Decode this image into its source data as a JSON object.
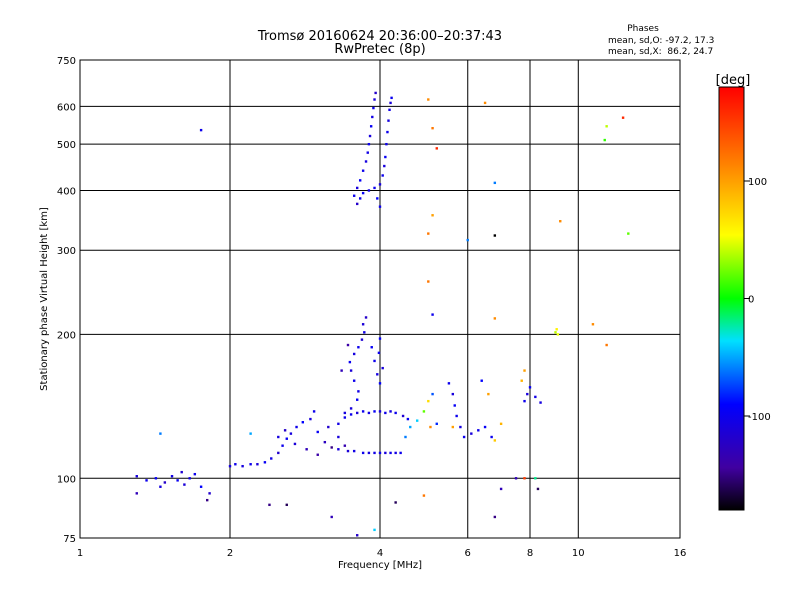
{
  "chart_data": {
    "type": "scatter",
    "title": "Tromsø 20160624 20:36:00–20:37:43",
    "subtitle": "RwPretec (8p)",
    "xlabel": "Frequency [MHz]",
    "ylabel": "Stationary phase Virtual Height [km]",
    "x_scale": "log",
    "y_scale": "log",
    "xlim": [
      1,
      16
    ],
    "ylim": [
      75,
      750
    ],
    "x_ticks": [
      1,
      2,
      4,
      6,
      8,
      10,
      16
    ],
    "x_tick_labels": [
      "1",
      "2",
      "4",
      "6",
      "8",
      "10",
      "16"
    ],
    "y_ticks": [
      75,
      100,
      200,
      300,
      400,
      500,
      600,
      750
    ],
    "y_tick_labels": [
      "75",
      "100",
      "200",
      "300",
      "400",
      "500",
      "600",
      "750"
    ],
    "x_grid": [
      2,
      4,
      6,
      8,
      10
    ],
    "y_grid": [
      100,
      200,
      300,
      400,
      500,
      600
    ],
    "grid": true,
    "stats": {
      "header": "Phases",
      "line_o": "mean, sd,O: -97.2, 17.3",
      "line_x": "mean, sd,X:  86.2, 24.7"
    },
    "colorbar": {
      "label": "[deg]",
      "range": [
        -180,
        180
      ],
      "ticks": [
        100,
        0,
        -100
      ],
      "tick_labels": [
        "100",
        "0",
        "-100"
      ]
    },
    "series": [
      {
        "name": "",
        "points": [
          [
            1.3,
            101,
            -110
          ],
          [
            1.36,
            99,
            -100
          ],
          [
            1.42,
            100,
            -95
          ],
          [
            1.48,
            98,
            -120
          ],
          [
            1.53,
            101,
            -105
          ],
          [
            1.57,
            99,
            -98
          ],
          [
            1.62,
            97,
            -112
          ],
          [
            1.66,
            100,
            -104
          ],
          [
            1.6,
            103,
            -115
          ],
          [
            1.7,
            102,
            -100
          ],
          [
            1.45,
            96,
            -108
          ],
          [
            1.3,
            93,
            -130
          ],
          [
            1.75,
            96,
            -90
          ],
          [
            1.82,
            93,
            -118
          ],
          [
            2.0,
            106,
            -110
          ],
          [
            2.05,
            107,
            -102
          ],
          [
            2.12,
            106,
            -108
          ],
          [
            2.2,
            107,
            -100
          ],
          [
            2.27,
            107,
            -112
          ],
          [
            2.35,
            108,
            -96
          ],
          [
            2.42,
            110,
            -105
          ],
          [
            2.5,
            113,
            -118
          ],
          [
            2.55,
            117,
            -100
          ],
          [
            2.6,
            121,
            -95
          ],
          [
            2.65,
            124,
            -108
          ],
          [
            2.72,
            128,
            -102
          ],
          [
            2.8,
            131,
            -90
          ],
          [
            2.9,
            133,
            -110
          ],
          [
            2.95,
            138,
            -100
          ],
          [
            2.5,
            122,
            -108
          ],
          [
            2.58,
            126,
            -120
          ],
          [
            2.7,
            118,
            -112
          ],
          [
            2.85,
            115,
            -130
          ],
          [
            3.0,
            112,
            -140
          ],
          [
            3.1,
            119,
            -125
          ],
          [
            3.2,
            116,
            -150
          ],
          [
            3.3,
            122,
            -110
          ],
          [
            3.4,
            117,
            -135
          ],
          [
            3.0,
            125,
            -95
          ],
          [
            3.15,
            128,
            -118
          ],
          [
            3.3,
            130,
            -105
          ],
          [
            3.4,
            134,
            -100
          ],
          [
            3.5,
            140,
            -110
          ],
          [
            3.6,
            146,
            -95
          ],
          [
            3.62,
            152,
            -105
          ],
          [
            3.55,
            160,
            -100
          ],
          [
            3.5,
            168,
            -112
          ],
          [
            3.48,
            175,
            -98
          ],
          [
            3.55,
            182,
            -108
          ],
          [
            3.62,
            188,
            -100
          ],
          [
            3.68,
            195,
            -115
          ],
          [
            3.72,
            202,
            -104
          ],
          [
            3.7,
            210,
            -112
          ],
          [
            3.75,
            217,
            -120
          ],
          [
            3.85,
            188,
            -95
          ],
          [
            3.9,
            176,
            -100
          ],
          [
            3.95,
            165,
            -108
          ],
          [
            4.0,
            158,
            -92
          ],
          [
            4.05,
            170,
            -110
          ],
          [
            3.98,
            183,
            -100
          ],
          [
            4.0,
            196,
            -96
          ],
          [
            3.45,
            190,
            -140
          ],
          [
            3.35,
            168,
            -130
          ],
          [
            3.4,
            137,
            -108
          ],
          [
            3.5,
            136,
            -100
          ],
          [
            3.6,
            137,
            -112
          ],
          [
            3.7,
            138,
            -100
          ],
          [
            3.8,
            137,
            -104
          ],
          [
            3.9,
            138,
            -96
          ],
          [
            4.0,
            138,
            -110
          ],
          [
            4.1,
            137,
            -102
          ],
          [
            4.2,
            138,
            -108
          ],
          [
            4.3,
            137,
            -100
          ],
          [
            4.45,
            135,
            -115
          ],
          [
            4.55,
            133,
            -95
          ],
          [
            3.3,
            115,
            -110
          ],
          [
            3.45,
            114,
            -112
          ],
          [
            3.55,
            114,
            -104
          ],
          [
            3.7,
            113,
            -100
          ],
          [
            3.8,
            113,
            -108
          ],
          [
            3.9,
            113,
            -104
          ],
          [
            4.0,
            113,
            -100
          ],
          [
            4.1,
            113,
            -110
          ],
          [
            4.2,
            113,
            -102
          ],
          [
            4.3,
            113,
            -106
          ],
          [
            4.4,
            113,
            -100
          ],
          [
            4.5,
            122,
            -60
          ],
          [
            4.6,
            128,
            -50
          ],
          [
            4.75,
            132,
            -40
          ],
          [
            4.9,
            138,
            20
          ],
          [
            5.0,
            145,
            70
          ],
          [
            5.1,
            150,
            -70
          ],
          [
            5.2,
            130,
            -80
          ],
          [
            5.5,
            158,
            -100
          ],
          [
            5.6,
            150,
            -110
          ],
          [
            5.65,
            142,
            -95
          ],
          [
            5.7,
            135,
            -100
          ],
          [
            5.8,
            128,
            -108
          ],
          [
            5.9,
            122,
            -100
          ],
          [
            6.1,
            124,
            -110
          ],
          [
            6.3,
            126,
            -102
          ],
          [
            6.5,
            128,
            -95
          ],
          [
            6.7,
            122,
            -100
          ],
          [
            6.4,
            160,
            -90
          ],
          [
            6.6,
            150,
            100
          ],
          [
            7.8,
            145,
            -100
          ],
          [
            7.9,
            150,
            -110
          ],
          [
            8.0,
            155,
            -96
          ],
          [
            8.2,
            148,
            -104
          ],
          [
            8.4,
            144,
            -108
          ],
          [
            7.7,
            160,
            90
          ],
          [
            7.8,
            168,
            100
          ],
          [
            5.05,
            128,
            110
          ],
          [
            5.6,
            128,
            100
          ],
          [
            7.0,
            130,
            90
          ],
          [
            6.8,
            120,
            80
          ],
          [
            3.55,
            390,
            -100
          ],
          [
            3.6,
            405,
            -110
          ],
          [
            3.65,
            420,
            -95
          ],
          [
            3.7,
            440,
            -100
          ],
          [
            3.75,
            460,
            -108
          ],
          [
            3.78,
            480,
            -104
          ],
          [
            3.8,
            500,
            -100
          ],
          [
            3.82,
            520,
            -110
          ],
          [
            3.84,
            545,
            -96
          ],
          [
            3.86,
            570,
            -105
          ],
          [
            3.88,
            595,
            -100
          ],
          [
            3.9,
            620,
            -112
          ],
          [
            3.92,
            640,
            -120
          ],
          [
            3.7,
            395,
            -95
          ],
          [
            3.8,
            400,
            -104
          ],
          [
            3.9,
            405,
            -100
          ],
          [
            4.0,
            412,
            -108
          ],
          [
            4.05,
            430,
            -100
          ],
          [
            4.08,
            450,
            -110
          ],
          [
            4.1,
            470,
            -96
          ],
          [
            4.12,
            500,
            -102
          ],
          [
            4.14,
            530,
            -100
          ],
          [
            4.16,
            560,
            -108
          ],
          [
            4.18,
            590,
            -104
          ],
          [
            4.2,
            610,
            -112
          ],
          [
            4.22,
            625,
            -98
          ],
          [
            3.6,
            375,
            -120
          ],
          [
            3.65,
            385,
            -102
          ],
          [
            3.95,
            385,
            -90
          ],
          [
            4.0,
            370,
            -100
          ],
          [
            1.75,
            535,
            -100
          ],
          [
            1.45,
            124,
            -60
          ],
          [
            1.8,
            90,
            -150
          ],
          [
            2.2,
            124,
            -50
          ],
          [
            2.4,
            88,
            -150
          ],
          [
            2.6,
            88,
            -160
          ],
          [
            3.2,
            83,
            -130
          ],
          [
            3.6,
            76,
            -120
          ],
          [
            3.9,
            78,
            -40
          ],
          [
            4.3,
            89,
            -160
          ],
          [
            4.9,
            92,
            120
          ],
          [
            5.0,
            620,
            110
          ],
          [
            5.1,
            540,
            120
          ],
          [
            5.2,
            490,
            160
          ],
          [
            5.1,
            355,
            100
          ],
          [
            5.0,
            325,
            120
          ],
          [
            5.0,
            258,
            120
          ],
          [
            5.1,
            220,
            -100
          ],
          [
            6.0,
            315,
            -60
          ],
          [
            6.5,
            610,
            110
          ],
          [
            6.8,
            415,
            -60
          ],
          [
            6.8,
            322,
            -180
          ],
          [
            6.8,
            216,
            110
          ],
          [
            6.8,
            83,
            -150
          ],
          [
            7.0,
            95,
            -130
          ],
          [
            7.5,
            100,
            -130
          ],
          [
            7.8,
            100,
            150
          ],
          [
            8.2,
            100,
            -20
          ],
          [
            8.3,
            95,
            -160
          ],
          [
            9.0,
            202,
            40
          ],
          [
            9.05,
            205,
            60
          ],
          [
            9.1,
            200,
            50
          ],
          [
            9.2,
            345,
            110
          ],
          [
            10.7,
            210,
            110
          ],
          [
            11.3,
            510,
            10
          ],
          [
            11.4,
            545,
            40
          ],
          [
            11.4,
            190,
            120
          ],
          [
            12.3,
            568,
            160
          ],
          [
            12.6,
            325,
            20
          ]
        ]
      }
    ]
  }
}
